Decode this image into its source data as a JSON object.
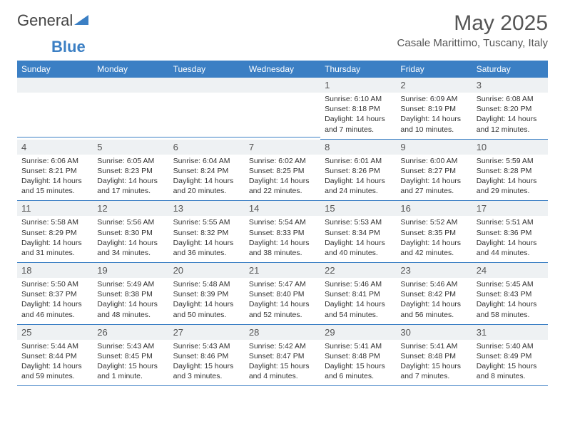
{
  "brand": {
    "name_gray": "General",
    "name_blue": "Blue",
    "logo_color": "#3b7fc4"
  },
  "title": "May 2025",
  "location": "Casale Marittimo, Tuscany, Italy",
  "colors": {
    "header_bg": "#3b7fc4",
    "header_text": "#ffffff",
    "daynum_bg": "#eef1f3",
    "text": "#333333",
    "divider": "#3b7fc4"
  },
  "day_headers": [
    "Sunday",
    "Monday",
    "Tuesday",
    "Wednesday",
    "Thursday",
    "Friday",
    "Saturday"
  ],
  "weeks": [
    [
      null,
      null,
      null,
      null,
      {
        "n": "1",
        "sr": "Sunrise: 6:10 AM",
        "ss": "Sunset: 8:18 PM",
        "dl": "Daylight: 14 hours and 7 minutes."
      },
      {
        "n": "2",
        "sr": "Sunrise: 6:09 AM",
        "ss": "Sunset: 8:19 PM",
        "dl": "Daylight: 14 hours and 10 minutes."
      },
      {
        "n": "3",
        "sr": "Sunrise: 6:08 AM",
        "ss": "Sunset: 8:20 PM",
        "dl": "Daylight: 14 hours and 12 minutes."
      }
    ],
    [
      {
        "n": "4",
        "sr": "Sunrise: 6:06 AM",
        "ss": "Sunset: 8:21 PM",
        "dl": "Daylight: 14 hours and 15 minutes."
      },
      {
        "n": "5",
        "sr": "Sunrise: 6:05 AM",
        "ss": "Sunset: 8:23 PM",
        "dl": "Daylight: 14 hours and 17 minutes."
      },
      {
        "n": "6",
        "sr": "Sunrise: 6:04 AM",
        "ss": "Sunset: 8:24 PM",
        "dl": "Daylight: 14 hours and 20 minutes."
      },
      {
        "n": "7",
        "sr": "Sunrise: 6:02 AM",
        "ss": "Sunset: 8:25 PM",
        "dl": "Daylight: 14 hours and 22 minutes."
      },
      {
        "n": "8",
        "sr": "Sunrise: 6:01 AM",
        "ss": "Sunset: 8:26 PM",
        "dl": "Daylight: 14 hours and 24 minutes."
      },
      {
        "n": "9",
        "sr": "Sunrise: 6:00 AM",
        "ss": "Sunset: 8:27 PM",
        "dl": "Daylight: 14 hours and 27 minutes."
      },
      {
        "n": "10",
        "sr": "Sunrise: 5:59 AM",
        "ss": "Sunset: 8:28 PM",
        "dl": "Daylight: 14 hours and 29 minutes."
      }
    ],
    [
      {
        "n": "11",
        "sr": "Sunrise: 5:58 AM",
        "ss": "Sunset: 8:29 PM",
        "dl": "Daylight: 14 hours and 31 minutes."
      },
      {
        "n": "12",
        "sr": "Sunrise: 5:56 AM",
        "ss": "Sunset: 8:30 PM",
        "dl": "Daylight: 14 hours and 34 minutes."
      },
      {
        "n": "13",
        "sr": "Sunrise: 5:55 AM",
        "ss": "Sunset: 8:32 PM",
        "dl": "Daylight: 14 hours and 36 minutes."
      },
      {
        "n": "14",
        "sr": "Sunrise: 5:54 AM",
        "ss": "Sunset: 8:33 PM",
        "dl": "Daylight: 14 hours and 38 minutes."
      },
      {
        "n": "15",
        "sr": "Sunrise: 5:53 AM",
        "ss": "Sunset: 8:34 PM",
        "dl": "Daylight: 14 hours and 40 minutes."
      },
      {
        "n": "16",
        "sr": "Sunrise: 5:52 AM",
        "ss": "Sunset: 8:35 PM",
        "dl": "Daylight: 14 hours and 42 minutes."
      },
      {
        "n": "17",
        "sr": "Sunrise: 5:51 AM",
        "ss": "Sunset: 8:36 PM",
        "dl": "Daylight: 14 hours and 44 minutes."
      }
    ],
    [
      {
        "n": "18",
        "sr": "Sunrise: 5:50 AM",
        "ss": "Sunset: 8:37 PM",
        "dl": "Daylight: 14 hours and 46 minutes."
      },
      {
        "n": "19",
        "sr": "Sunrise: 5:49 AM",
        "ss": "Sunset: 8:38 PM",
        "dl": "Daylight: 14 hours and 48 minutes."
      },
      {
        "n": "20",
        "sr": "Sunrise: 5:48 AM",
        "ss": "Sunset: 8:39 PM",
        "dl": "Daylight: 14 hours and 50 minutes."
      },
      {
        "n": "21",
        "sr": "Sunrise: 5:47 AM",
        "ss": "Sunset: 8:40 PM",
        "dl": "Daylight: 14 hours and 52 minutes."
      },
      {
        "n": "22",
        "sr": "Sunrise: 5:46 AM",
        "ss": "Sunset: 8:41 PM",
        "dl": "Daylight: 14 hours and 54 minutes."
      },
      {
        "n": "23",
        "sr": "Sunrise: 5:46 AM",
        "ss": "Sunset: 8:42 PM",
        "dl": "Daylight: 14 hours and 56 minutes."
      },
      {
        "n": "24",
        "sr": "Sunrise: 5:45 AM",
        "ss": "Sunset: 8:43 PM",
        "dl": "Daylight: 14 hours and 58 minutes."
      }
    ],
    [
      {
        "n": "25",
        "sr": "Sunrise: 5:44 AM",
        "ss": "Sunset: 8:44 PM",
        "dl": "Daylight: 14 hours and 59 minutes."
      },
      {
        "n": "26",
        "sr": "Sunrise: 5:43 AM",
        "ss": "Sunset: 8:45 PM",
        "dl": "Daylight: 15 hours and 1 minute."
      },
      {
        "n": "27",
        "sr": "Sunrise: 5:43 AM",
        "ss": "Sunset: 8:46 PM",
        "dl": "Daylight: 15 hours and 3 minutes."
      },
      {
        "n": "28",
        "sr": "Sunrise: 5:42 AM",
        "ss": "Sunset: 8:47 PM",
        "dl": "Daylight: 15 hours and 4 minutes."
      },
      {
        "n": "29",
        "sr": "Sunrise: 5:41 AM",
        "ss": "Sunset: 8:48 PM",
        "dl": "Daylight: 15 hours and 6 minutes."
      },
      {
        "n": "30",
        "sr": "Sunrise: 5:41 AM",
        "ss": "Sunset: 8:48 PM",
        "dl": "Daylight: 15 hours and 7 minutes."
      },
      {
        "n": "31",
        "sr": "Sunrise: 5:40 AM",
        "ss": "Sunset: 8:49 PM",
        "dl": "Daylight: 15 hours and 8 minutes."
      }
    ]
  ]
}
